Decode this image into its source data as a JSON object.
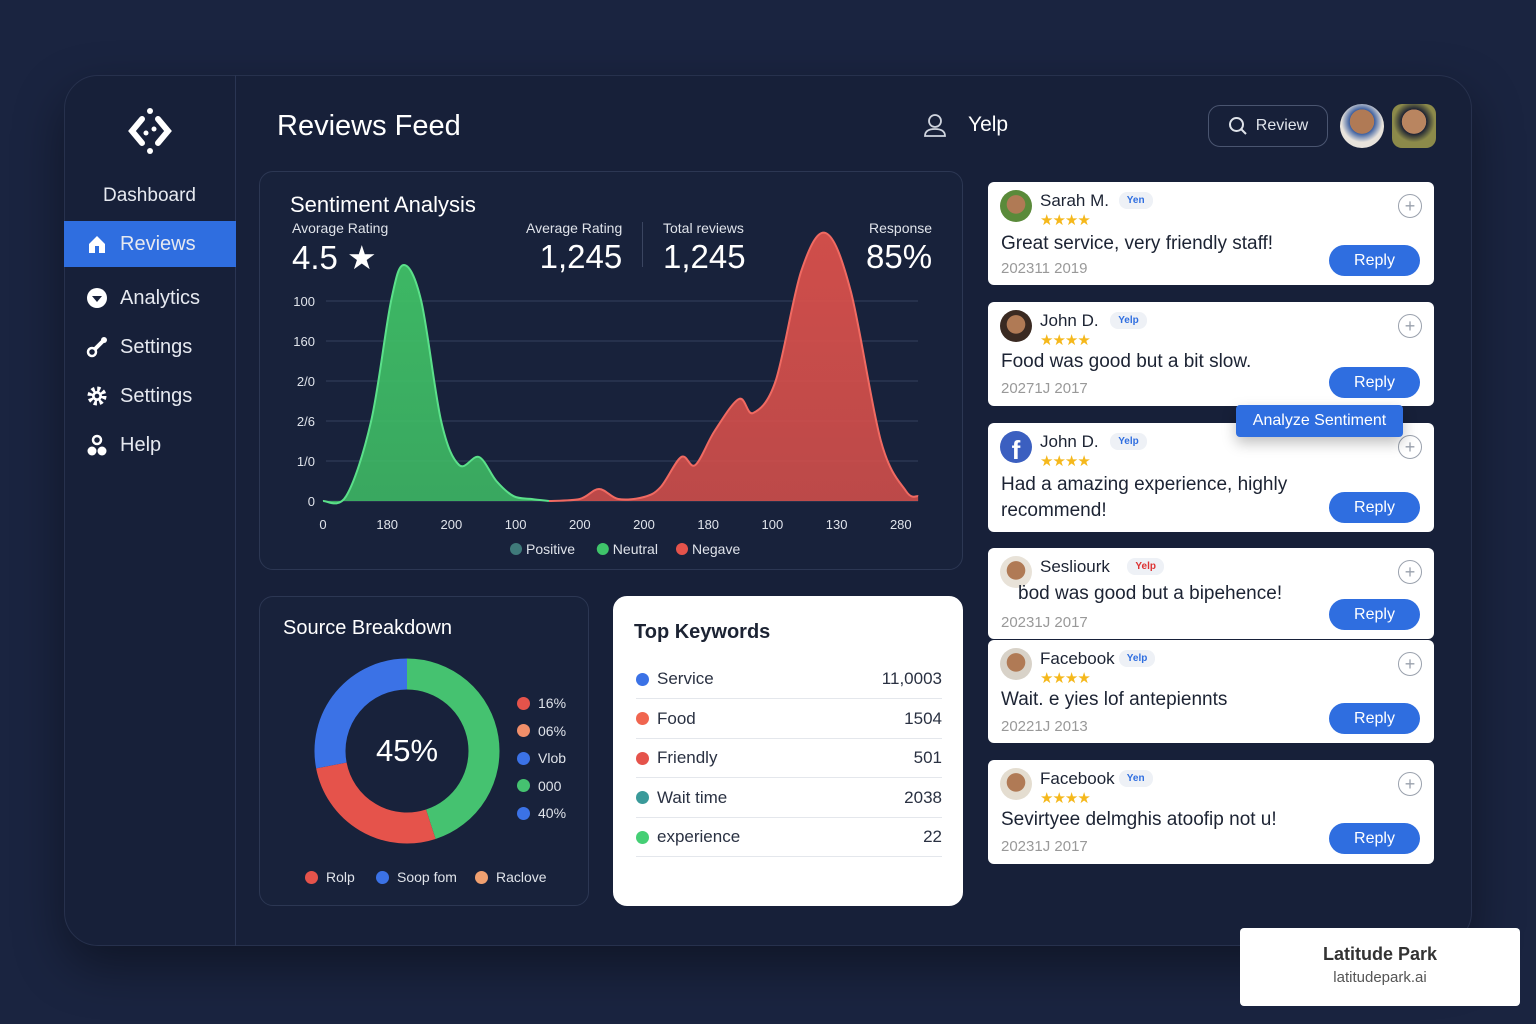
{
  "sidebar": {
    "dashboard": "Dashboard",
    "items": [
      {
        "label": "Reviews",
        "icon": "home-icon",
        "active": true
      },
      {
        "label": "Analytics",
        "icon": "heart-icon"
      },
      {
        "label": "Settings",
        "icon": "tools-icon"
      },
      {
        "label": "Settings",
        "icon": "gear-icon"
      },
      {
        "label": "Help",
        "icon": "users-icon"
      }
    ]
  },
  "header": {
    "title": "Reviews Feed",
    "source": "Yelp",
    "search_label": "Review"
  },
  "sentiment": {
    "title": "Sentiment Analysis",
    "stats": [
      {
        "label": "Avorage Rating",
        "value": "4.5 ★"
      },
      {
        "label": "Average Rating",
        "value": "1,245"
      },
      {
        "label": "Total reviews",
        "value": "1,245"
      },
      {
        "label": "Response",
        "value": "85%"
      }
    ]
  },
  "chart_data": [
    {
      "type": "area",
      "title": "Sentiment Analysis",
      "grid": true,
      "legend": "bottom",
      "x_ticks": [
        "0",
        "180",
        "200",
        "100",
        "200",
        "200",
        "180",
        "100",
        "130",
        "280"
      ],
      "y_ticks": [
        "0",
        "1/0",
        "2/6",
        "2/0",
        "160",
        "100"
      ],
      "legend_entries": [
        {
          "name": "Positive",
          "color": "#3f7a7a"
        },
        {
          "name": "Neutral",
          "color": "#3fc46a"
        },
        {
          "name": "Negave",
          "color": "#e5534b"
        }
      ],
      "series": [
        {
          "name": "Neutral",
          "color": "#3fbf66",
          "points": [
            [
              0,
              0
            ],
            [
              0.36,
              0.12
            ],
            [
              0.75,
              2
            ],
            [
              1.06,
              5
            ],
            [
              1.26,
              5.9
            ],
            [
              1.53,
              5
            ],
            [
              1.84,
              2
            ],
            [
              2.12,
              0.9
            ],
            [
              2.43,
              1.1
            ],
            [
              2.7,
              0.5
            ],
            [
              2.97,
              0.12
            ],
            [
              3.25,
              0.05
            ],
            [
              3.52,
              0
            ]
          ]
        },
        {
          "name": "Negave",
          "color": "#d9504b",
          "points": [
            [
              3.52,
              0
            ],
            [
              4.0,
              0.05
            ],
            [
              4.3,
              0.3
            ],
            [
              4.6,
              0.05
            ],
            [
              5.0,
              0.1
            ],
            [
              5.26,
              0.35
            ],
            [
              5.58,
              1.1
            ],
            [
              5.8,
              0.9
            ],
            [
              6.1,
              1.75
            ],
            [
              6.48,
              2.55
            ],
            [
              6.7,
              2.2
            ],
            [
              7.05,
              3
            ],
            [
              7.45,
              5.75
            ],
            [
              7.83,
              6.7
            ],
            [
              8.22,
              5.25
            ],
            [
              8.69,
              1.5
            ],
            [
              9.08,
              0.25
            ],
            [
              9.27,
              0.12
            ]
          ]
        }
      ]
    },
    {
      "type": "pie",
      "title": "Source Breakdown",
      "center_label": "45%",
      "slices": [
        {
          "value": 45,
          "color": "#45c270"
        },
        {
          "value": 27,
          "color": "#e5534b"
        },
        {
          "value": 28,
          "color": "#3b72e6"
        }
      ],
      "side_legend": [
        {
          "label": "16%",
          "color": "#e5534b"
        },
        {
          "label": "06%",
          "color": "#f08f6a"
        },
        {
          "label": "Vlob",
          "color": "#3b72e6"
        },
        {
          "label": "000",
          "color": "#45c270"
        },
        {
          "label": "40%",
          "color": "#3b72e6"
        }
      ],
      "bottom_legend": [
        {
          "label": "Rolp",
          "color": "#e5534b"
        },
        {
          "label": "Soop fom",
          "color": "#3b72e6"
        },
        {
          "label": "Raclove",
          "color": "#f0a070"
        }
      ]
    }
  ],
  "keywords": {
    "title": "Top Keywords",
    "rows": [
      {
        "label": "Service",
        "value": "11,0003",
        "color": "#3b72e6"
      },
      {
        "label": "Food",
        "value": "1504",
        "color": "#f0654f"
      },
      {
        "label": "Friendly",
        "value": "501",
        "color": "#e5534b"
      },
      {
        "label": "Wait time",
        "value": "2038",
        "color": "#3a9a9a"
      },
      {
        "label": "experience",
        "value": "22",
        "color": "#45cf75"
      }
    ]
  },
  "reviews": [
    {
      "name": "Sarah M.",
      "badge": "Yen",
      "stars": "★★★★",
      "text": "Great service, very friendly staff!",
      "date": "202311 2019",
      "reply": "Reply"
    },
    {
      "name": "John D.",
      "badge": "Yelp",
      "stars": "★★★★",
      "text": "Food was good but a bit slow.",
      "date": "20271J 2017",
      "reply": "Reply"
    },
    {
      "name": "John D.",
      "badge": "Yelp",
      "stars": "★★★★",
      "text": "Had a amazing experience, highly recommend!",
      "date": "",
      "reply": "Reply",
      "facebook": true
    },
    {
      "name": "Sesliourk",
      "badge": "Yelp",
      "stars": "",
      "text": "ḃod was good but a bipehence!",
      "date": "20231J 2017",
      "reply": "Reply",
      "badge_red": true
    },
    {
      "name": "Facebook",
      "badge": "Yelp",
      "stars": "★★★★",
      "text": "Wait. e yies lof antepiennts",
      "date": "20221J 2013",
      "reply": "Reply"
    },
    {
      "name": "Facebook",
      "badge": "Yen",
      "stars": "★★★★",
      "text": "Sevirtyee delmghis atoofip not u!",
      "date": "20231J 2017",
      "reply": "Reply"
    }
  ],
  "tooltip": "Analyze Sentiment",
  "watermark": {
    "name": "Latitude Park",
    "url": "latitudepark.ai"
  }
}
